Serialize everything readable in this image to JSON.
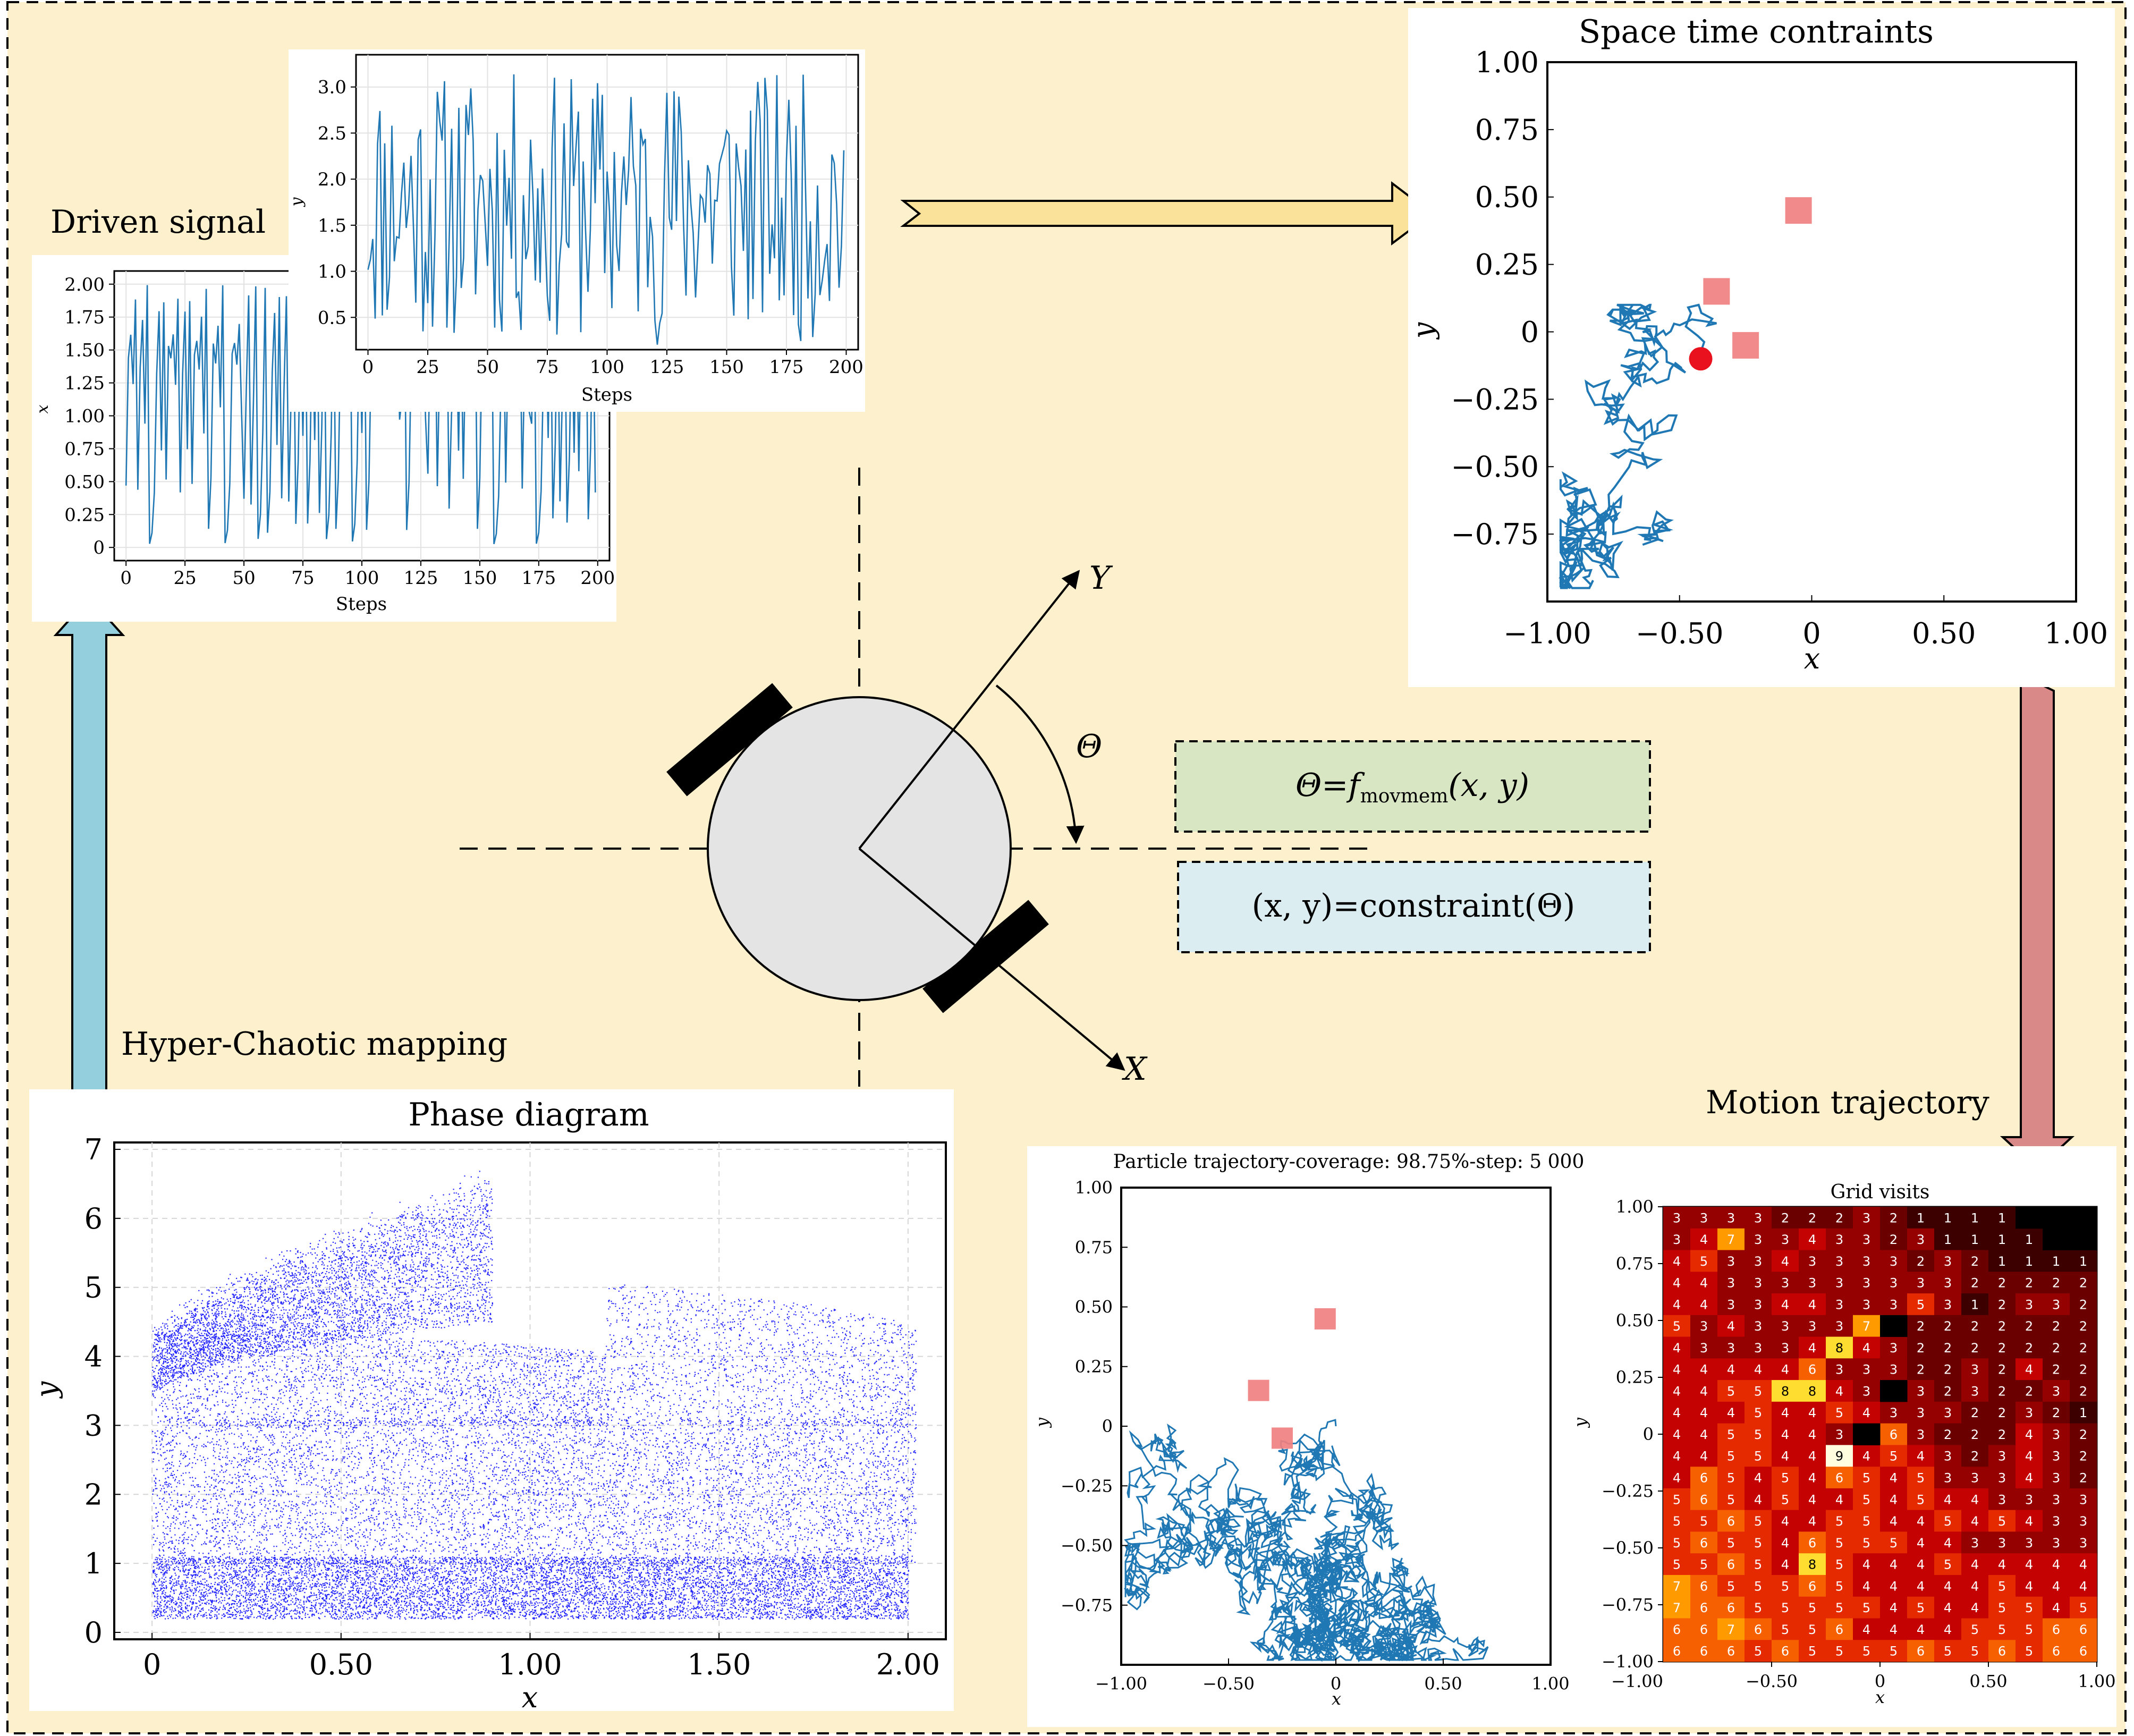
{
  "labels": {
    "driven_signal": "Driven signal",
    "hyper_chaotic": "Hyper-Chaotic mapping",
    "motion_trajectory": "Motion trajectory",
    "axis_Y": "Y",
    "axis_X": "X",
    "theta": "Θ"
  },
  "equations": {
    "theta_lhs": "Θ=",
    "theta_f": "f",
    "theta_sub": "movmem",
    "theta_args": "(x, y)",
    "constraint": "(x, y)=constraint(Θ)"
  },
  "colors": {
    "background": "#fdf0cc",
    "line_blue": "#1f77b4",
    "scatter_blue": "#0000ff",
    "obstacle": "#f08080",
    "robot_body": "#e4e4e4",
    "eq1_box": "#d9e6c4",
    "eq2_box": "#dcedf2",
    "arrow_yellow": "#fbe29a",
    "arrow_cyan": "#93cfdc",
    "arrow_red": "#d98a88"
  },
  "chart_data": [
    {
      "id": "driven-x",
      "type": "line",
      "title": "",
      "xlabel": "Steps",
      "ylabel": "x",
      "xlim": [
        -5,
        205
      ],
      "ylim": [
        -0.1,
        2.1
      ],
      "xticks": [
        "0",
        "25",
        "50",
        "75",
        "100",
        "125",
        "150",
        "175",
        "200"
      ],
      "yticks": [
        "0",
        "0.25",
        "0.50",
        "0.75",
        "1.00",
        "1.25",
        "1.50",
        "1.75",
        "2.00"
      ],
      "series": [
        {
          "n_points": 200,
          "range": [
            0,
            2
          ]
        }
      ]
    },
    {
      "id": "driven-y",
      "type": "line",
      "title": "",
      "xlabel": "Steps",
      "ylabel": "y",
      "xlim": [
        -5,
        205
      ],
      "ylim": [
        0.15,
        3.35
      ],
      "xticks": [
        "0",
        "25",
        "50",
        "75",
        "100",
        "125",
        "150",
        "175",
        "200"
      ],
      "yticks": [
        "0.5",
        "1.0",
        "1.5",
        "2.0",
        "2.5",
        "3.0"
      ],
      "series": [
        {
          "n_points": 200,
          "range": [
            0.2,
            3.15
          ]
        }
      ]
    },
    {
      "id": "space-time",
      "type": "line",
      "title": "Space time contraints",
      "xlabel": "x",
      "ylabel": "y",
      "xlim": [
        -1.0,
        1.0
      ],
      "ylim": [
        -1.0,
        1.0
      ],
      "xticks": [
        "−1.00",
        "−0.50",
        "0",
        "0.50",
        "1.00"
      ],
      "yticks": [
        "1.00",
        "0.75",
        "0.50",
        "0.25",
        "0",
        "−0.25",
        "−0.50",
        "−0.75"
      ],
      "obstacles": [
        [
          -0.05,
          0.45
        ],
        [
          -0.36,
          0.15
        ],
        [
          -0.25,
          -0.05
        ]
      ],
      "start": [
        -0.42,
        -0.1
      ]
    },
    {
      "id": "phase",
      "type": "scatter",
      "title": "Phase diagram",
      "xlabel": "x",
      "ylabel": "y",
      "xlim": [
        -0.1,
        2.1
      ],
      "ylim": [
        -0.1,
        7.1
      ],
      "xticks": [
        "0",
        "0.50",
        "1.00",
        "1.50",
        "2.00"
      ],
      "yticks": [
        "0",
        "1",
        "2",
        "3",
        "4",
        "5",
        "6",
        "7"
      ]
    },
    {
      "id": "particle",
      "type": "line",
      "title": "Particle trajectory-coverage: 98.75%-step: 5 000",
      "xlabel": "x",
      "ylabel": "y",
      "xlim": [
        -1.0,
        1.0
      ],
      "ylim": [
        -1.0,
        1.0
      ],
      "xticks": [
        "−1.00",
        "−0.50",
        "0",
        "0.50",
        "1.00"
      ],
      "yticks": [
        "1.00",
        "0.75",
        "0.50",
        "0.25",
        "0",
        "−0.25",
        "−0.50",
        "−0.75"
      ],
      "obstacles": [
        [
          -0.05,
          0.45
        ],
        [
          -0.36,
          0.15
        ],
        [
          -0.25,
          -0.05
        ]
      ]
    },
    {
      "id": "grid",
      "type": "heatmap",
      "title": "Grid visits",
      "xlabel": "x",
      "ylabel": "y",
      "xticks": [
        "−0.50",
        "0",
        "0.50",
        "1.00"
      ],
      "yticks": [
        "1.00",
        "0.75",
        "0.50",
        "0.25",
        "0",
        "−0.25",
        "−0.50",
        "−0.75",
        "−1.00"
      ],
      "rows": [
        "3333222321111111",
        "3473343323111111",
        "4533433332321111",
        "4433333333322222",
        "4433443335312332",
        "5343333762222222",
        "4333348432222222",
        "4444463332232422",
        "4455884333232232",
        "4445445433322321",
        "4455443363222432",
        "4455449454323432",
        "4654546545333432",
        "5654544545443333",
        "5565445544545433",
        "5655465554433333",
        "5565485444544444",
        "7655565444445444",
        "7665555545445545",
        "6676556444455566",
        "6665655556556566"
      ]
    }
  ]
}
